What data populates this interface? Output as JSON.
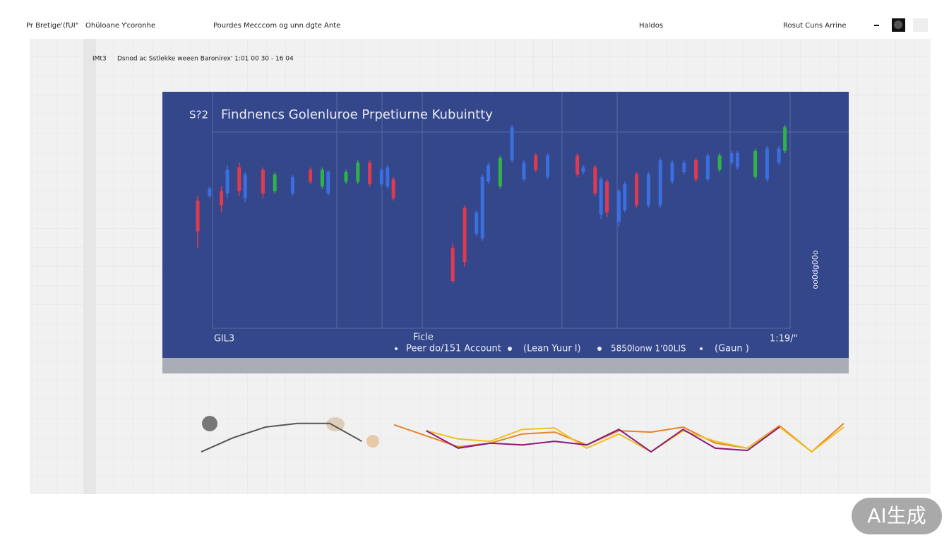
{
  "header": {
    "items": [
      "Pr Bretige'(fUI\"",
      "Ohüloane Ƴcoronhe",
      "Pourdes Mecccom og unn dgte Ante",
      "Haldos",
      "Rosut Cuns Arrine"
    ]
  },
  "subheader": {
    "left": "IMt3",
    "text": "Dsnod ac Sstlekke weeen Baronirex' 1:01 00 30 - 16 04"
  },
  "chart_data": [
    {
      "type": "candlestick",
      "title": "Findnencs Golenluroe Prpetiurne Kubuintty",
      "corner_label": "S?2",
      "x_label": "Ficle",
      "annotations": [
        "GlL3",
        "1:19/\""
      ],
      "side_label": "oo0dg00o",
      "legend": [
        "Peer do/151 Account",
        "(Lean Yuur l)",
        "5850lonw 1'00LIS",
        "(Gaun )"
      ],
      "xlim": [
        0,
        100
      ],
      "ylim": [
        0,
        100
      ],
      "x": [
        0,
        2,
        4,
        5,
        7,
        8,
        11,
        13,
        16,
        19,
        21,
        22,
        25,
        27,
        29,
        31,
        32,
        33,
        43,
        45,
        47,
        48,
        49,
        51,
        53,
        55,
        57,
        59,
        64,
        65,
        67,
        68,
        69,
        71,
        72,
        74,
        76,
        78,
        80,
        82,
        84,
        86,
        88,
        90,
        91,
        94,
        96,
        98,
        99
      ],
      "open": [
        54,
        56,
        58,
        57,
        68,
        55,
        67,
        58,
        57,
        67,
        60,
        57,
        62,
        62,
        70,
        61,
        60,
        63,
        34,
        51,
        40,
        38,
        62,
        60,
        71,
        63,
        73,
        64,
        73,
        66,
        68,
        48,
        62,
        45,
        50,
        65,
        52,
        52,
        62,
        66,
        71,
        63,
        67,
        70,
        68,
        64,
        63,
        70,
        75
      ],
      "high": [
        56,
        60,
        60,
        69,
        70,
        66,
        68,
        66,
        65,
        68,
        68,
        67,
        67,
        71,
        71,
        68,
        69,
        64,
        36,
        52,
        50,
        65,
        70,
        73,
        86,
        71,
        74,
        74,
        74,
        69,
        69,
        64,
        63,
        59,
        62,
        66,
        66,
        72,
        71,
        71,
        72,
        74,
        74,
        75,
        75,
        76,
        77,
        77,
        86
      ],
      "low": [
        34,
        55,
        49,
        55,
        56,
        53,
        55,
        57,
        56,
        61,
        59,
        56,
        61,
        61,
        60,
        60,
        59,
        54,
        19,
        26,
        39,
        37,
        61,
        59,
        70,
        62,
        66,
        63,
        64,
        65,
        56,
        46,
        47,
        43,
        49,
        51,
        51,
        51,
        61,
        65,
        62,
        62,
        66,
        69,
        67,
        63,
        62,
        69,
        74
      ],
      "close": [
        41,
        59,
        52,
        67,
        58,
        65,
        57,
        65,
        64,
        62,
        67,
        66,
        66,
        70,
        61,
        67,
        68,
        55,
        20,
        28,
        49,
        64,
        69,
        72,
        85,
        70,
        67,
        73,
        65,
        68,
        57,
        63,
        49,
        58,
        61,
        52,
        65,
        71,
        70,
        70,
        63,
        73,
        73,
        74,
        74,
        75,
        76,
        76,
        85
      ],
      "colors": [
        "#e03a4e",
        "#3b6fe0",
        "#e03a4e",
        "#3b6fe0",
        "#e03a4e",
        "#3b6fe0",
        "#e03a4e",
        "#2fb24a",
        "#3b6fe0",
        "#e03a4e",
        "#2fb24a",
        "#3b6fe0",
        "#2fb24a",
        "#2fb24a",
        "#e03a4e",
        "#3b6fe0",
        "#3b6fe0",
        "#e03a4e",
        "#e03a4e",
        "#e03a4e",
        "#3b6fe0",
        "#3b6fe0",
        "#3b6fe0",
        "#2fb24a",
        "#3b6fe0",
        "#3b6fe0",
        "#e03a4e",
        "#3b6fe0",
        "#e03a4e",
        "#3b6fe0",
        "#e03a4e",
        "#3b6fe0",
        "#e03a4e",
        "#3b6fe0",
        "#3b6fe0",
        "#e03a4e",
        "#3b6fe0",
        "#3b6fe0",
        "#3b6fe0",
        "#3b6fe0",
        "#e03a4e",
        "#3b6fe0",
        "#2fb24a",
        "#3b6fe0",
        "#3b6fe0",
        "#2fb24a",
        "#3b6fe0",
        "#3b6fe0",
        "#2fb24a"
      ]
    },
    {
      "type": "line",
      "xlim": [
        0,
        100
      ],
      "ylim": [
        0,
        100
      ],
      "x": [
        0,
        5,
        10,
        15,
        20,
        25,
        30,
        35,
        40,
        45,
        50,
        55,
        60,
        65,
        70,
        75,
        80,
        85,
        90,
        95,
        100
      ],
      "series": [
        {
          "color": "#555555",
          "values": [
            23,
            54,
            77,
            85,
            85,
            46,
            null,
            null,
            null,
            null,
            null,
            null,
            null,
            null,
            null,
            null,
            null,
            null,
            null,
            null,
            null
          ]
        },
        {
          "color": "#e8822a",
          "values": [
            null,
            null,
            null,
            null,
            null,
            null,
            82,
            58,
            34,
            42,
            62,
            66,
            38,
            69,
            66,
            77,
            42,
            31,
            80,
            23,
            85
          ]
        },
        {
          "color": "#f0c020",
          "values": [
            null,
            null,
            null,
            null,
            null,
            null,
            null,
            69,
            51,
            46,
            72,
            75,
            31,
            62,
            23,
            69,
            46,
            31,
            77,
            23,
            77
          ]
        },
        {
          "color": "#8a1a7a",
          "values": [
            null,
            null,
            null,
            null,
            null,
            null,
            null,
            69,
            31,
            42,
            38,
            46,
            38,
            72,
            23,
            72,
            31,
            26,
            77,
            null,
            null
          ]
        }
      ]
    }
  ],
  "watermark": "AI生成"
}
